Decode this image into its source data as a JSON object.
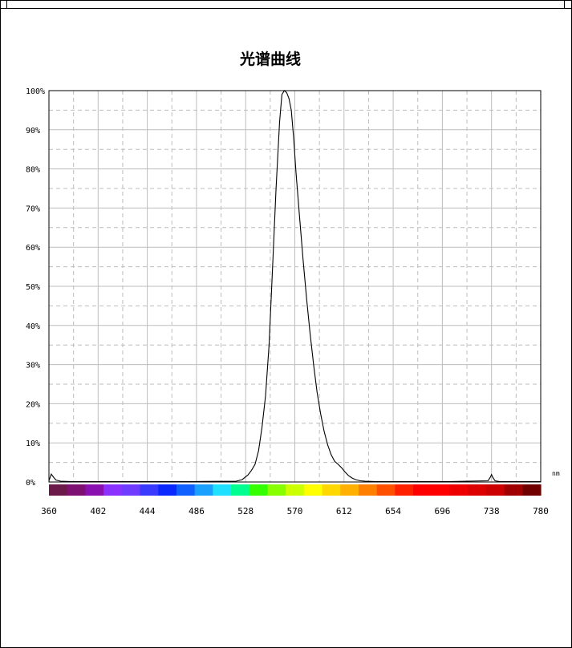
{
  "chart_data": {
    "type": "line",
    "title": "光谱曲线",
    "xlabel": "nm",
    "ylabel": "",
    "xlim": [
      360,
      780
    ],
    "ylim": [
      0,
      100
    ],
    "grid": true,
    "x_ticks": [
      "360",
      "402",
      "444",
      "486",
      "528",
      "570",
      "612",
      "654",
      "696",
      "738",
      "780"
    ],
    "y_ticks": [
      "0%",
      "10%",
      "20%",
      "30%",
      "40%",
      "50%",
      "60%",
      "70%",
      "80%",
      "90%",
      "100%"
    ],
    "series": [
      {
        "x": [
          360,
          362,
          364,
          366,
          370,
          380,
          400,
          440,
          480,
          520,
          525,
          530,
          533,
          536,
          539,
          542,
          545,
          548,
          551,
          554,
          557,
          559,
          561,
          563,
          565,
          567,
          569,
          571,
          574,
          577,
          580,
          583,
          586,
          589,
          592,
          595,
          598,
          601,
          604,
          607,
          610,
          613,
          616,
          619,
          622,
          626,
          630,
          640,
          660,
          700,
          735,
          737,
          738,
          739,
          741,
          745,
          760,
          780
        ],
        "y": [
          0.3,
          2.0,
          1.2,
          0.5,
          0.2,
          0.1,
          0.1,
          0.1,
          0.1,
          0.2,
          0.6,
          1.8,
          3.0,
          4.5,
          8.0,
          14.0,
          22.0,
          35.0,
          55.0,
          75.0,
          92.0,
          99.0,
          100.0,
          99.5,
          98.0,
          95.0,
          88.0,
          79.0,
          68.0,
          57.0,
          47.0,
          38.0,
          30.0,
          23.0,
          17.5,
          13.0,
          9.5,
          7.0,
          5.3,
          4.5,
          3.6,
          2.5,
          1.6,
          1.0,
          0.6,
          0.3,
          0.2,
          0.1,
          0.1,
          0.1,
          0.3,
          1.2,
          1.9,
          1.2,
          0.3,
          0.1,
          0.1,
          0.1
        ],
        "color": "#000000"
      }
    ],
    "spectrum_colors": [
      "#6b1a4a",
      "#7d1070",
      "#8a10b0",
      "#8a30ff",
      "#6e3bff",
      "#3a3aff",
      "#0a28ff",
      "#1060ff",
      "#1aa0ff",
      "#20e0ff",
      "#00ff90",
      "#33ff00",
      "#88ff00",
      "#ccff00",
      "#ffff00",
      "#ffd800",
      "#ffb000",
      "#ff8000",
      "#ff5000",
      "#ff2000",
      "#ff0000",
      "#ff0000",
      "#ee0000",
      "#dd0000",
      "#cc0000",
      "#a00000",
      "#700000"
    ]
  }
}
